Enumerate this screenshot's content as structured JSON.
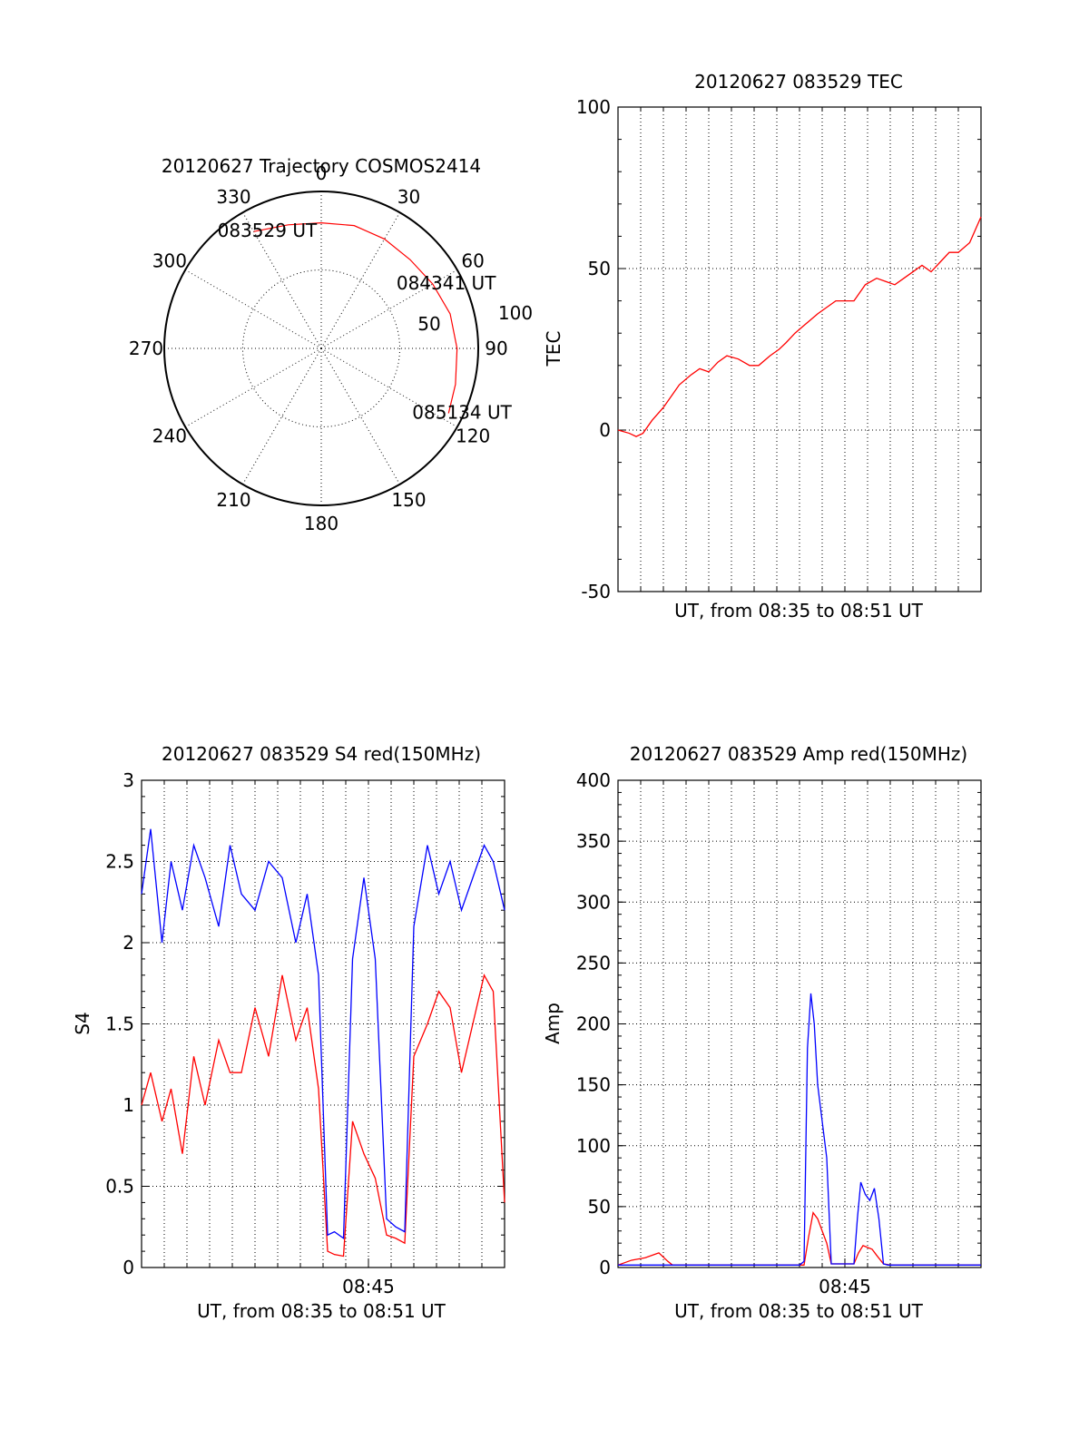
{
  "chart_data": [
    {
      "id": "polar",
      "type": "scatter",
      "title": "20120627 Trajectory COSMOS2414",
      "angle_labels": [
        "0",
        "30",
        "60",
        "90",
        "120",
        "150",
        "180",
        "210",
        "240",
        "270",
        "300",
        "330"
      ],
      "radius_labels": [
        "50",
        "100"
      ],
      "rlim": [
        0,
        100
      ],
      "grid": true,
      "series": [
        {
          "color": "#ff0000",
          "points": [
            [
              330.0,
              86.0
            ],
            [
              345.0,
              81.5
            ],
            [
              0.0,
              80.0
            ],
            [
              15.0,
              81.0
            ],
            [
              30.0,
              80.5
            ],
            [
              45.0,
              80.0
            ],
            [
              60.0,
              82.0
            ],
            [
              75.0,
              85.0
            ],
            [
              90.0,
              86.5
            ],
            [
              105.0,
              88.5
            ],
            [
              117.0,
              91.0
            ]
          ]
        }
      ],
      "annotations": [
        {
          "text": "083529 UT",
          "at": [
            330.0,
            86.0
          ]
        },
        {
          "text": "084341 UT",
          "at": [
            60.0,
            82.0
          ]
        },
        {
          "text": "085134 UT",
          "at": [
            117.0,
            91.0
          ]
        }
      ]
    },
    {
      "id": "tec",
      "type": "line",
      "title": "20120627 083529 TEC",
      "xlabel": "UT, from 08:35 to 08:51 UT",
      "ylabel": "TEC",
      "xlim": [
        0,
        16
      ],
      "ylim": [
        -50,
        100
      ],
      "yticks": [
        "-50",
        "0",
        "50",
        "100"
      ],
      "xticks": [],
      "grid": true,
      "series": [
        {
          "color": "#ff0000",
          "x": [
            0.0,
            0.5,
            0.8,
            1.1,
            1.5,
            2.0,
            2.4,
            2.7,
            3.2,
            3.6,
            4.0,
            4.4,
            4.8,
            5.3,
            5.8,
            6.2,
            6.7,
            7.1,
            7.4,
            7.8,
            8.3,
            8.8,
            9.2,
            9.6,
            10.0,
            10.4,
            10.9,
            11.4,
            11.8,
            12.2,
            12.6,
            13.0,
            13.4,
            13.8,
            14.2,
            14.6,
            15.0,
            15.5,
            16.0
          ],
          "y": [
            0,
            -1,
            -2,
            -1,
            3,
            7,
            11,
            14,
            17,
            19,
            18,
            21,
            23,
            22,
            20,
            20,
            23,
            25,
            27,
            30,
            33,
            36,
            38,
            40,
            40,
            40,
            45,
            47,
            46,
            45,
            47,
            49,
            51,
            49,
            52,
            55,
            55,
            58,
            66
          ]
        }
      ]
    },
    {
      "id": "s4",
      "type": "line",
      "title": "20120627 083529 S4 red(150MHz)",
      "xlabel": "UT, from 08:35 to 08:51 UT",
      "xticks": [
        "08:45"
      ],
      "ylabel": "S4",
      "xlim": [
        0,
        16
      ],
      "ylim": [
        0,
        3
      ],
      "yticks": [
        "0",
        "0.5",
        "1",
        "1.5",
        "2",
        "2.5",
        "3"
      ],
      "grid": true,
      "series": [
        {
          "color": "#ff0000",
          "x": [
            0.0,
            0.4,
            0.9,
            1.3,
            1.8,
            2.3,
            2.8,
            3.4,
            3.9,
            4.4,
            5.0,
            5.6,
            6.2,
            6.8,
            7.3,
            7.8,
            8.2,
            8.5,
            8.9,
            9.3,
            9.8,
            10.3,
            10.8,
            11.2,
            11.6,
            12.0,
            12.6,
            13.1,
            13.6,
            14.1,
            14.6,
            15.1,
            15.5,
            16.0
          ],
          "y": [
            1.0,
            1.2,
            0.9,
            1.1,
            0.7,
            1.3,
            1.0,
            1.4,
            1.2,
            1.2,
            1.6,
            1.3,
            1.8,
            1.4,
            1.6,
            1.1,
            0.1,
            0.08,
            0.07,
            0.9,
            0.7,
            0.55,
            0.2,
            0.18,
            0.15,
            1.3,
            1.5,
            1.7,
            1.6,
            1.2,
            1.5,
            1.8,
            1.7,
            0.4
          ]
        },
        {
          "color": "#0000ff",
          "x": [
            0.0,
            0.4,
            0.9,
            1.3,
            1.8,
            2.3,
            2.8,
            3.4,
            3.9,
            4.4,
            5.0,
            5.6,
            6.2,
            6.8,
            7.3,
            7.8,
            8.2,
            8.5,
            8.9,
            9.3,
            9.8,
            10.3,
            10.8,
            11.2,
            11.6,
            12.0,
            12.6,
            13.1,
            13.6,
            14.1,
            14.6,
            15.1,
            15.5,
            16.0
          ],
          "y": [
            2.3,
            2.7,
            2.0,
            2.5,
            2.2,
            2.6,
            2.4,
            2.1,
            2.6,
            2.3,
            2.2,
            2.5,
            2.4,
            2.0,
            2.3,
            1.8,
            0.2,
            0.22,
            0.18,
            1.9,
            2.4,
            1.9,
            0.3,
            0.25,
            0.22,
            2.1,
            2.6,
            2.3,
            2.5,
            2.2,
            2.4,
            2.6,
            2.5,
            2.2
          ]
        }
      ]
    },
    {
      "id": "amp",
      "type": "line",
      "title": "20120627 083529 Amp red(150MHz)",
      "xlabel": "UT, from 08:35 to 08:51 UT",
      "xticks": [
        "08:45"
      ],
      "ylabel": "Amp",
      "xlim": [
        0,
        16
      ],
      "ylim": [
        0,
        400
      ],
      "yticks": [
        "0",
        "50",
        "100",
        "150",
        "200",
        "250",
        "300",
        "350",
        "400"
      ],
      "grid": true,
      "series": [
        {
          "color": "#ff0000",
          "x": [
            0.0,
            0.6,
            1.2,
            1.8,
            2.2,
            2.4,
            3.0,
            5.0,
            7.0,
            8.2,
            8.4,
            8.6,
            8.8,
            9.0,
            9.2,
            9.4,
            10.4,
            10.6,
            10.8,
            11.2,
            11.4,
            11.7,
            12.0,
            14.0,
            16.0
          ],
          "y": [
            2,
            6,
            8,
            12,
            5,
            2,
            2,
            2,
            2,
            2,
            25,
            45,
            40,
            30,
            20,
            3,
            3,
            12,
            18,
            15,
            10,
            3,
            2,
            2,
            2
          ]
        },
        {
          "color": "#0000ff",
          "x": [
            0.0,
            2.0,
            4.0,
            6.0,
            8.0,
            8.2,
            8.35,
            8.5,
            8.65,
            8.8,
            9.0,
            9.2,
            9.4,
            10.4,
            10.55,
            10.7,
            10.9,
            11.1,
            11.3,
            11.5,
            11.7,
            11.9,
            13.0,
            14.5,
            16.0
          ],
          "y": [
            2,
            2,
            2,
            2,
            2,
            5,
            180,
            225,
            200,
            150,
            120,
            90,
            3,
            3,
            40,
            70,
            60,
            55,
            65,
            40,
            3,
            2,
            2,
            2,
            2
          ]
        }
      ]
    }
  ]
}
